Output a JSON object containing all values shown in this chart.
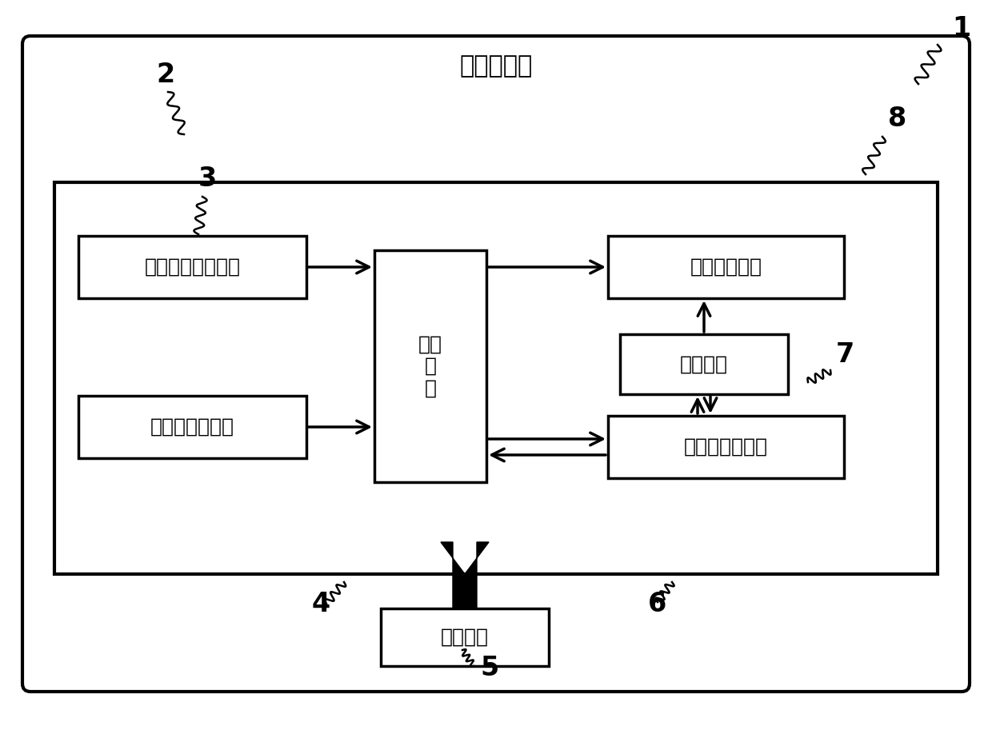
{
  "title": "应急灯设备",
  "box_smoke": "烟雾浓度处理单元",
  "box_radar": "超宽带雷达模块",
  "box_micro": "微处\n理\n器",
  "box_bright": "亮度调节单元",
  "box_light": "光源模块",
  "box_vlc": "可见光通信模块",
  "box_power": "电源模块",
  "bg_color": "#ffffff",
  "box_color": "#ffffff",
  "border_color": "#000000",
  "text_color": "#000000",
  "font_size": 18,
  "title_font_size": 22,
  "label_fontsize": 24
}
